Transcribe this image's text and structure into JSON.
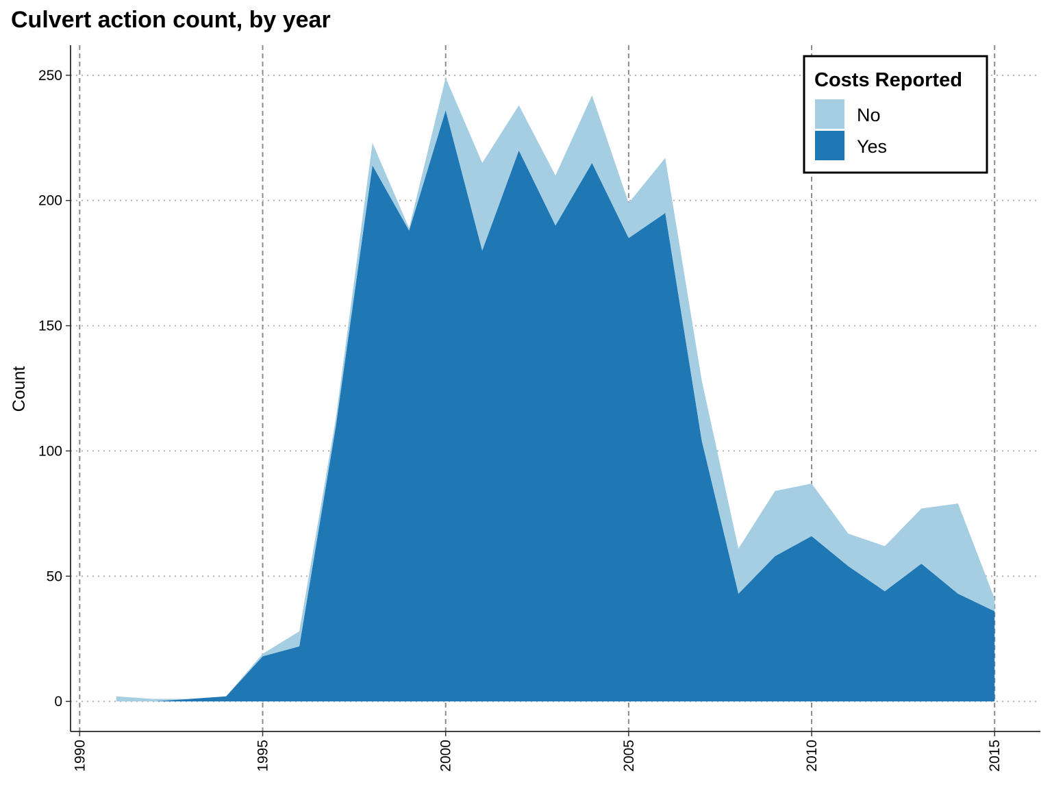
{
  "chart_data": {
    "type": "area",
    "stacked": true,
    "title": "Culvert action count, by year",
    "xlabel": "",
    "ylabel": "Count",
    "x": [
      1991,
      1992,
      1993,
      1994,
      1995,
      1996,
      1997,
      1998,
      1999,
      2000,
      2001,
      2002,
      2003,
      2004,
      2005,
      2006,
      2007,
      2008,
      2009,
      2010,
      2011,
      2012,
      2013,
      2014,
      2015
    ],
    "series": [
      {
        "name": "Yes",
        "color": "#1f78b4",
        "values": [
          0,
          0,
          1,
          2,
          18,
          22,
          110,
          214,
          188,
          236,
          180,
          220,
          190,
          215,
          185,
          195,
          104,
          43,
          58,
          66,
          54,
          44,
          55,
          43,
          36
        ]
      },
      {
        "name": "No",
        "color": "#a6cee3",
        "values": [
          2,
          1,
          0,
          0,
          1,
          6,
          3,
          9,
          1,
          13,
          35,
          18,
          20,
          27,
          14,
          22,
          24,
          18,
          26,
          21,
          13,
          18,
          22,
          36,
          5
        ]
      }
    ],
    "stack_order": [
      "Yes",
      "No"
    ],
    "xlim": [
      1989.75,
      2016.25
    ],
    "ylim": [
      -12,
      262
    ],
    "x_ticks": [
      1990,
      1995,
      2000,
      2005,
      2010,
      2015
    ],
    "x_tick_labels": [
      "1990",
      "1995",
      "2000",
      "2005",
      "2010",
      "2015"
    ],
    "y_ticks": [
      0,
      50,
      100,
      150,
      200,
      250
    ],
    "y_tick_labels": [
      "0",
      "50",
      "100",
      "150",
      "200",
      "250"
    ],
    "grid": true,
    "legend": {
      "title": "Costs Reported",
      "placement": "top-right",
      "entries": [
        {
          "label": "No",
          "color": "#a6cee3"
        },
        {
          "label": "Yes",
          "color": "#1f78b4"
        }
      ]
    }
  }
}
